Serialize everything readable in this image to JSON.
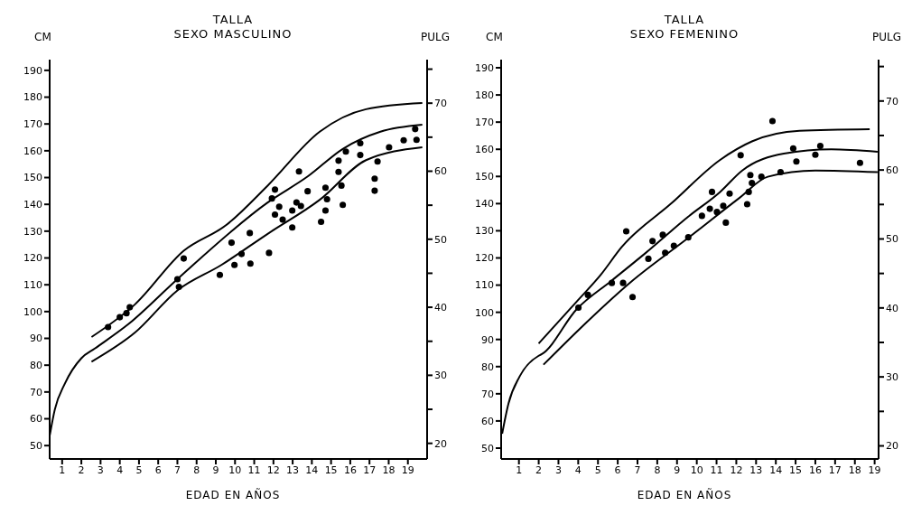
{
  "chart_data": [
    {
      "type": "scatter",
      "title": "TALLA",
      "subtitle": "SEXO MASCULINO",
      "xlabel": "EDAD EN AÑOS",
      "ylabel": "CM",
      "y2label": "PULG",
      "xlim": [
        0.35,
        20
      ],
      "xticks": [
        1,
        2,
        3,
        4,
        5,
        6,
        7,
        8,
        9,
        10,
        11,
        12,
        13,
        14,
        15,
        16,
        17,
        18,
        19
      ],
      "ylim": [
        45,
        194
      ],
      "yticks": [
        50,
        60,
        70,
        80,
        90,
        100,
        110,
        120,
        130,
        140,
        150,
        160,
        170,
        180,
        190
      ],
      "y2lim": [
        17.7,
        76.4
      ],
      "y2ticks": [
        20,
        {
          "value": 25,
          "label": null
        },
        30,
        {
          "value": 35,
          "label": null
        },
        40,
        {
          "value": 45,
          "label": null
        },
        50,
        {
          "value": 55,
          "label": null
        },
        60,
        {
          "value": 65,
          "label": null
        },
        70,
        {
          "value": 75,
          "label": null
        }
      ],
      "series": [
        {
          "type": "line",
          "marker": "none",
          "line_style": "solid",
          "color": "#000000",
          "x": [
            2.53,
            4.78,
            7.33,
            9.53,
            11.7,
            14.41,
            16.82,
            19.75
          ],
          "values": [
            90.5,
            102.6,
            122.7,
            132.2,
            147,
            167.1,
            175.5,
            177.8
          ]
        },
        {
          "type": "line",
          "marker": "none",
          "line_style": "solid",
          "color": "#000000",
          "x": [
            0.36,
            0.62,
            1.14,
            2.0,
            2.7,
            4.43,
            7.0,
            11.7,
            13.8,
            15.61,
            17.57,
            19.75
          ],
          "values": [
            54,
            63.5,
            73.1,
            82.6,
            86.2,
            95.2,
            112.1,
            140.7,
            150.5,
            160.7,
            167.1,
            169.7
          ]
        },
        {
          "type": "line",
          "marker": "none",
          "line_style": "solid",
          "color": "#000000",
          "x": [
            2.53,
            4.78,
            7.0,
            9.29,
            11.7,
            14.41,
            16.82,
            19.75
          ],
          "values": [
            81.3,
            92.1,
            107.9,
            117.4,
            129,
            141.7,
            156.5,
            161.3
          ]
        },
        {
          "marker": "circle",
          "color": "#000000",
          "x": [
            3.39,
            4.0,
            4.35,
            4.52,
            7.0,
            7.08,
            7.33,
            9.21,
            9.82,
            9.97,
            10.34,
            10.77,
            10.8,
            11.77,
            11.92,
            12.08,
            12.08,
            12.3,
            12.48,
            12.98,
            12.98,
            13.33,
            13.2,
            13.43,
            13.78,
            14.48,
            14.71,
            14.79,
            14.71,
            15.39,
            15.39,
            15.54,
            15.61,
            15.77,
            16.52,
            16.52,
            17.42,
            17.27,
            17.27,
            18.02,
            18.78,
            19.38,
            19.45
          ],
          "values": [
            94.2,
            97.9,
            99.4,
            101.6,
            112.1,
            109.2,
            119.8,
            113.7,
            125.7,
            117.4,
            121.5,
            129.3,
            117.9,
            121.9,
            142.2,
            145.5,
            136.2,
            139.1,
            134.3,
            131.4,
            137.7,
            152.3,
            140.7,
            139.4,
            144.9,
            133.5,
            137.7,
            141.9,
            146.2,
            156.3,
            152.1,
            147,
            139.8,
            159.7,
            162.8,
            158.4,
            156,
            149.6,
            145.1,
            161.3,
            163.9,
            168.1,
            164.1
          ]
        }
      ]
    },
    {
      "type": "scatter",
      "title": "TALLA",
      "subtitle": "SEXO FEMENINO",
      "xlabel": "EDAD EN AÑOS",
      "ylabel": "CM",
      "y2label": "PULG",
      "xlim": [
        0.1,
        19.2
      ],
      "xticks": [
        1,
        2,
        3,
        4,
        5,
        6,
        7,
        8,
        9,
        10,
        11,
        12,
        13,
        14,
        15,
        16,
        17,
        18,
        19
      ],
      "ylim": [
        46,
        193
      ],
      "yticks": [
        50,
        60,
        70,
        80,
        90,
        100,
        110,
        120,
        130,
        140,
        150,
        160,
        170,
        180,
        190
      ],
      "y2lim": [
        18.1,
        76
      ],
      "y2ticks": [
        20,
        {
          "value": 25,
          "label": null
        },
        30,
        {
          "value": 35,
          "label": null
        },
        40,
        {
          "value": 45,
          "label": null
        },
        50,
        {
          "value": 55,
          "label": null
        },
        60,
        {
          "value": 65,
          "label": null
        },
        70,
        {
          "value": 75,
          "label": null
        }
      ],
      "series": [
        {
          "type": "line",
          "marker": "none",
          "line_style": "solid",
          "color": "#000000",
          "x": [
            2.0,
            3.93,
            5.14,
            6.2,
            8.7,
            11.18,
            12.79,
            15.2,
            18.75
          ],
          "values": [
            88.5,
            104,
            113.8,
            124,
            140,
            156.1,
            162.9,
            166.8,
            167.4
          ]
        },
        {
          "type": "line",
          "marker": "none",
          "line_style": "solid",
          "color": "#000000",
          "x": [
            0.15,
            0.47,
            1.03,
            2.0,
            2.16,
            3.93,
            5.7,
            7.39,
            9.57,
            11.18,
            12.3,
            14.4,
            16.81,
            19.15
          ],
          "values": [
            55.3,
            66.4,
            76.3,
            84,
            84.6,
            101.2,
            111.7,
            121.7,
            135.2,
            144.3,
            152.2,
            158.4,
            160,
            159.1
          ]
        },
        {
          "type": "line",
          "marker": "none",
          "line_style": "solid",
          "color": "#000000",
          "x": [
            2.24,
            4.09,
            6.67,
            9.57,
            12.14,
            13.59,
            16.0,
            19.15
          ],
          "values": [
            80.7,
            94,
            111.2,
            127.4,
            142,
            149.9,
            152.2,
            151.6
          ]
        },
        {
          "marker": "circle",
          "color": "#000000",
          "x": [
            4.01,
            4.49,
            5.7,
            6.27,
            6.75,
            6.43,
            7.55,
            7.76,
            8.28,
            8.4,
            8.84,
            9.57,
            10.26,
            10.66,
            10.77,
            11.02,
            11.34,
            11.47,
            11.66,
            12.22,
            12.55,
            12.63,
            12.71,
            12.79,
            13.27,
            13.83,
            14.24,
            14.88,
            15.04,
            16.0,
            16.25,
            18.26
          ],
          "values": [
            101.7,
            106.4,
            110.8,
            110.8,
            105.6,
            129.8,
            119.7,
            126.2,
            128.5,
            121.9,
            124.5,
            127.6,
            135.5,
            138.1,
            144.3,
            136.9,
            139.2,
            133,
            143.7,
            157.8,
            139.8,
            144.3,
            150.5,
            147.6,
            149.9,
            170.4,
            151.6,
            160.3,
            155.5,
            158,
            161.2,
            155
          ]
        }
      ]
    }
  ]
}
